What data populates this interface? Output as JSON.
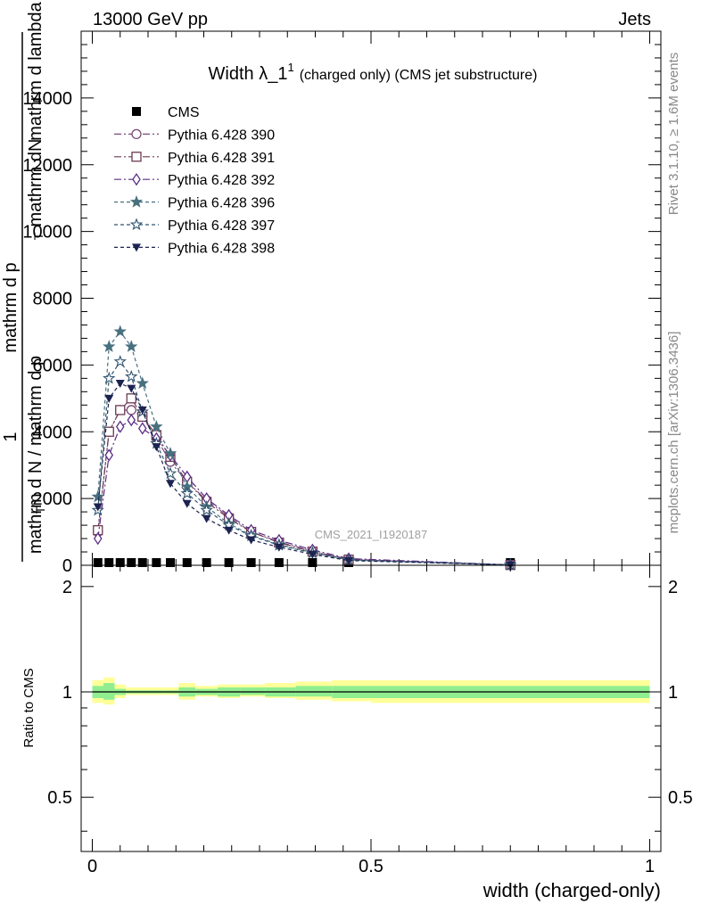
{
  "header": {
    "left": "13000 GeV pp",
    "right": "Jets"
  },
  "side_labels": {
    "top": "Rivet 3.1.10, ≥ 1.6M events",
    "bottom": "mcplots.cern.ch [arXiv:1306.3436]"
  },
  "watermark": "CMS_2021_I1920187",
  "colors": {
    "cms": "#000000",
    "p390": "#7a4a78",
    "p391": "#6b3a52",
    "p392": "#5b2d86",
    "p396": "#48707e",
    "p397": "#305570",
    "p398": "#1c2350",
    "band_yellow": "#ffff99",
    "band_green": "#90ee90"
  },
  "chart_data": [
    {
      "type": "line",
      "title_main": "Width λ_1",
      "title_sup": "1",
      "title_sub": "(charged only) (CMS jet substructure)",
      "ylabel_parts": [
        "1",
        "mathrm d N / mathrm d p",
        "T",
        "mathrm d p",
        "T",
        "mathrm dN",
        "mathrm d lambda"
      ],
      "xlim": [
        -0.02,
        1.02
      ],
      "ylim": [
        0,
        16000
      ],
      "yticks": [
        0,
        2000,
        4000,
        6000,
        8000,
        10000,
        12000,
        14000
      ],
      "ytick_labels": [
        "0",
        "2000",
        "4000",
        "6000",
        "8000",
        "10000",
        "12000",
        "14000"
      ],
      "legend_position": "top-left",
      "x": [
        0.01,
        0.03,
        0.05,
        0.07,
        0.09,
        0.115,
        0.14,
        0.17,
        0.205,
        0.245,
        0.285,
        0.335,
        0.395,
        0.46,
        0.75
      ],
      "series": [
        {
          "name": "CMS",
          "key": "cms",
          "marker": "square-filled",
          "values": [
            0,
            0,
            0,
            0,
            0,
            0,
            0,
            0,
            0,
            0,
            0,
            0,
            0,
            0,
            0
          ]
        },
        {
          "name": "Pythia 6.428 390",
          "key": "p390",
          "marker": "circle-open",
          "dash": "8,3,2,3",
          "values": [
            1000,
            4000,
            4650,
            4650,
            4450,
            3800,
            3100,
            2500,
            1950,
            1450,
            1000,
            700,
            420,
            180,
            12
          ]
        },
        {
          "name": "Pythia 6.428 391",
          "key": "p391",
          "marker": "square-open",
          "dash": "8,3,2,3",
          "values": [
            1050,
            4000,
            4650,
            5000,
            4450,
            3900,
            3250,
            2500,
            1900,
            1400,
            1000,
            680,
            410,
            170,
            10
          ]
        },
        {
          "name": "Pythia 6.428 392",
          "key": "p392",
          "marker": "diamond-open",
          "dash": "8,3,2,3",
          "values": [
            800,
            3300,
            4150,
            4350,
            4100,
            3800,
            3300,
            2650,
            2000,
            1500,
            1050,
            750,
            460,
            200,
            14
          ]
        },
        {
          "name": "Pythia 6.428 396",
          "key": "p396",
          "marker": "star-filled",
          "dash": "4,3",
          "values": [
            2050,
            6550,
            7000,
            6550,
            5450,
            4150,
            3350,
            2350,
            1750,
            1250,
            900,
            620,
            380,
            160,
            10
          ]
        },
        {
          "name": "Pythia 6.428 397",
          "key": "p397",
          "marker": "star-open",
          "dash": "4,3",
          "values": [
            1650,
            5600,
            6100,
            5650,
            4600,
            3650,
            2750,
            2150,
            1650,
            1200,
            880,
            600,
            370,
            160,
            10
          ]
        },
        {
          "name": "Pythia 6.428 398",
          "key": "p398",
          "marker": "triangle-down-filled",
          "dash": "4,3",
          "values": [
            1750,
            5000,
            5450,
            5300,
            4650,
            3550,
            2450,
            1850,
            1400,
            1050,
            760,
            540,
            330,
            140,
            9
          ]
        }
      ]
    },
    {
      "type": "area",
      "ylabel": "Ratio to CMS",
      "xlabel": "width (charged-only)",
      "ylim": [
        0.35,
        2.3
      ],
      "yscale": "log",
      "yticks": [
        0.5,
        1,
        2
      ],
      "ytick_labels": [
        "0.5",
        "1",
        "2"
      ],
      "xticks": [
        0,
        0.5,
        1
      ],
      "xtick_labels": [
        "0",
        "0.5",
        "1"
      ],
      "bin_edges": [
        0.0,
        0.02,
        0.04,
        0.06,
        0.08,
        0.1,
        0.13,
        0.155,
        0.185,
        0.225,
        0.265,
        0.31,
        0.365,
        0.43,
        0.5,
        1.0
      ],
      "yellow_lo": [
        0.93,
        0.92,
        0.96,
        0.98,
        0.98,
        0.98,
        0.98,
        0.95,
        0.97,
        0.96,
        0.97,
        0.96,
        0.95,
        0.94,
        0.93
      ],
      "yellow_hi": [
        1.08,
        1.1,
        1.05,
        1.03,
        1.03,
        1.03,
        1.03,
        1.06,
        1.04,
        1.05,
        1.05,
        1.06,
        1.07,
        1.08,
        1.08
      ],
      "green_lo": [
        0.96,
        0.95,
        0.98,
        0.99,
        0.99,
        0.99,
        0.99,
        0.97,
        0.98,
        0.97,
        0.98,
        0.97,
        0.97,
        0.96,
        0.96
      ],
      "green_hi": [
        1.04,
        1.06,
        1.02,
        1.01,
        1.01,
        1.01,
        1.01,
        1.03,
        1.02,
        1.03,
        1.03,
        1.03,
        1.04,
        1.04,
        1.04
      ]
    }
  ]
}
